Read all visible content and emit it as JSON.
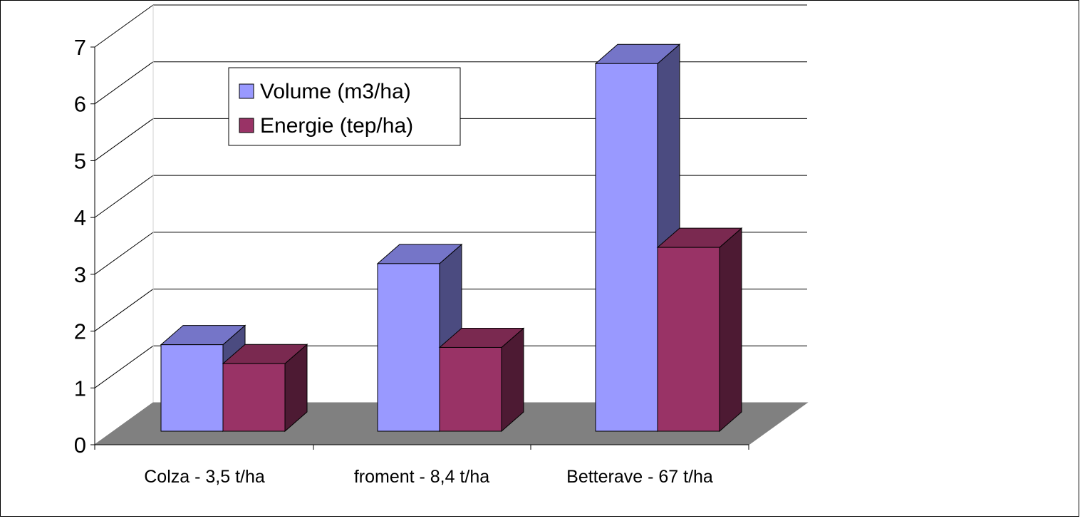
{
  "chart_data": {
    "type": "bar",
    "style": "3d-clustered-column",
    "categories": [
      "Colza - 3,5 t/ha",
      "froment - 8,4 t/ha",
      "Betterave - 67 t/ha"
    ],
    "series": [
      {
        "name": "Volume (m3/ha)",
        "values": [
          1.6,
          3.1,
          6.8
        ]
      },
      {
        "name": "Energie (tep/ha)",
        "values": [
          1.25,
          1.55,
          3.4
        ]
      }
    ],
    "y_ticks": [
      "0",
      "1",
      "2",
      "3",
      "4",
      "5",
      "6",
      "7"
    ],
    "ylim": [
      0,
      7
    ],
    "grid": true,
    "legend_position": "top-left-inside",
    "colors": {
      "volume_front": "#9999FF",
      "volume_side": "#4B4B80",
      "volume_top": "#7575C8",
      "energie_front": "#993366",
      "energie_side": "#4D1A33",
      "energie_top": "#7A2950",
      "floor": "#808080",
      "grid": "#000000"
    }
  }
}
